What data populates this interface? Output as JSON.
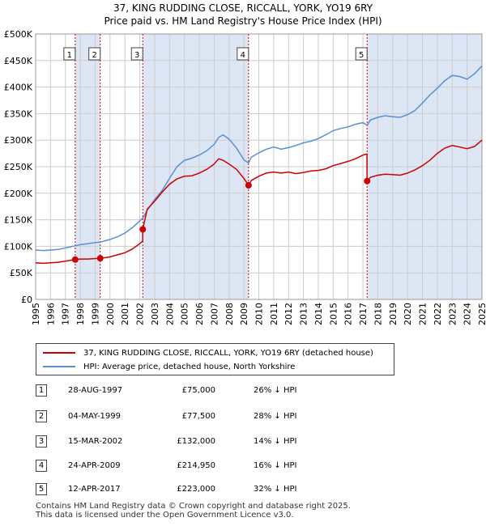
{
  "title_line1": "37, KING RUDDING CLOSE, RICCALL, YORK, YO19 6RY",
  "title_line2": "Price paid vs. HM Land Registry's House Price Index (HPI)",
  "legend": {
    "red": "37, KING RUDDING CLOSE, RICCALL, YORK, YO19 6RY (detached house)",
    "blue": "HPI: Average price, detached house, North Yorkshire"
  },
  "transactions": [
    {
      "num": "1",
      "date": "28-AUG-1997",
      "price": "£75,000",
      "hpi": "26% ↓ HPI"
    },
    {
      "num": "2",
      "date": "04-MAY-1999",
      "price": "£77,500",
      "hpi": "28% ↓ HPI"
    },
    {
      "num": "3",
      "date": "15-MAR-2002",
      "price": "£132,000",
      "hpi": "14% ↓ HPI"
    },
    {
      "num": "4",
      "date": "24-APR-2009",
      "price": "£214,950",
      "hpi": "16% ↓ HPI"
    },
    {
      "num": "5",
      "date": "12-APR-2017",
      "price": "£223,000",
      "hpi": "32% ↓ HPI"
    }
  ],
  "footer_line1": "Contains HM Land Registry data © Crown copyright and database right 2025.",
  "footer_line2": "This data is licensed under the Open Government Licence v3.0.",
  "colors": {
    "red": "#cc0000",
    "blue": "#5b8fd1",
    "shade": "#dde6f5"
  },
  "chart_data": {
    "type": "line",
    "title": "37, KING RUDDING CLOSE, RICCALL, YORK, YO19 6RY",
    "subtitle": "Price paid vs. HM Land Registry's House Price Index (HPI)",
    "xlim": [
      1995,
      2025
    ],
    "ylim": [
      0,
      500000
    ],
    "x_ticks": [
      "1995",
      "1996",
      "1997",
      "1998",
      "1999",
      "2000",
      "2001",
      "2002",
      "2003",
      "2004",
      "2005",
      "2006",
      "2007",
      "2008",
      "2009",
      "2010",
      "2011",
      "2012",
      "2013",
      "2014",
      "2015",
      "2016",
      "2017",
      "2018",
      "2019",
      "2020",
      "2021",
      "2022",
      "2023",
      "2024",
      "2025"
    ],
    "y_ticks": [
      {
        "v": 0,
        "label": "£0"
      },
      {
        "v": 50000,
        "label": "£50K"
      },
      {
        "v": 100000,
        "label": "£100K"
      },
      {
        "v": 150000,
        "label": "£150K"
      },
      {
        "v": 200000,
        "label": "£200K"
      },
      {
        "v": 250000,
        "label": "£250K"
      },
      {
        "v": 300000,
        "label": "£300K"
      },
      {
        "v": 350000,
        "label": "£350K"
      },
      {
        "v": 400000,
        "label": "£400K"
      },
      {
        "v": 450000,
        "label": "£450K"
      },
      {
        "v": 500000,
        "label": "£500K"
      }
    ],
    "grid": true,
    "legend_position": "below chart",
    "sales": [
      {
        "label": "1",
        "x": 1997.66,
        "y": 75000
      },
      {
        "label": "2",
        "x": 1999.34,
        "y": 77500
      },
      {
        "label": "3",
        "x": 2002.2,
        "y": 132000
      },
      {
        "label": "4",
        "x": 2009.31,
        "y": 214950
      },
      {
        "label": "5",
        "x": 2017.28,
        "y": 223000
      }
    ],
    "series": [
      {
        "name": "HPI: Average price, detached house, North Yorkshire",
        "x": [
          1995,
          1995.5,
          1996,
          1996.5,
          1997,
          1997.66,
          1998,
          1998.5,
          1999,
          1999.34,
          2000,
          2000.5,
          2001,
          2001.5,
          2002,
          2002.2,
          2002.5,
          2003,
          2003.5,
          2004,
          2004.5,
          2005,
          2005.5,
          2006,
          2006.5,
          2007,
          2007.3,
          2007.6,
          2008,
          2008.5,
          2009,
          2009.31,
          2009.5,
          2010,
          2010.5,
          2011,
          2011.5,
          2012,
          2012.5,
          2013,
          2013.5,
          2014,
          2014.5,
          2015,
          2015.5,
          2016,
          2016.5,
          2017,
          2017.28,
          2017.5,
          2018,
          2018.5,
          2019,
          2019.5,
          2020,
          2020.5,
          2021,
          2021.5,
          2022,
          2022.5,
          2023,
          2023.5,
          2024,
          2024.5,
          2025
        ],
        "y": [
          93000,
          92000,
          93000,
          94000,
          97000,
          101000,
          103000,
          105000,
          107000,
          108000,
          113000,
          118000,
          125000,
          135000,
          148000,
          153000,
          168000,
          188000,
          205000,
          228000,
          250000,
          262000,
          266000,
          272000,
          280000,
          292000,
          305000,
          310000,
          302000,
          285000,
          263000,
          257000,
          268000,
          276000,
          283000,
          287000,
          283000,
          286000,
          290000,
          295000,
          298000,
          303000,
          310000,
          318000,
          322000,
          325000,
          330000,
          333000,
          328000,
          338000,
          343000,
          346000,
          344000,
          343000,
          348000,
          356000,
          370000,
          385000,
          398000,
          412000,
          422000,
          420000,
          415000,
          425000,
          440000
        ]
      },
      {
        "name": "37, KING RUDDING CLOSE, RICCALL, YORK, YO19 6RY (detached house)",
        "x": [
          1995,
          1995.5,
          1996,
          1996.5,
          1997,
          1997.66,
          1998,
          1998.5,
          1999,
          1999.34,
          2000,
          2000.5,
          2001,
          2001.5,
          2002,
          2002.19,
          2002.2,
          2002.5,
          2003,
          2003.5,
          2004,
          2004.5,
          2005,
          2005.5,
          2006,
          2006.5,
          2007,
          2007.3,
          2007.6,
          2008,
          2008.5,
          2009,
          2009.31,
          2009.5,
          2010,
          2010.5,
          2011,
          2011.5,
          2012,
          2012.5,
          2013,
          2013.5,
          2014,
          2014.5,
          2015,
          2015.5,
          2016,
          2016.5,
          2017,
          2017.27,
          2017.28,
          2017.5,
          2018,
          2018.5,
          2019,
          2019.5,
          2020,
          2020.5,
          2021,
          2021.5,
          2022,
          2022.5,
          2023,
          2023.5,
          2024,
          2024.5,
          2025
        ],
        "y": [
          69000,
          68000,
          69000,
          70000,
          72000,
          75000,
          76000,
          76000,
          77000,
          77500,
          80000,
          84000,
          88000,
          95000,
          105000,
          110000,
          132000,
          170000,
          185000,
          202000,
          217000,
          227000,
          232000,
          233000,
          238000,
          245000,
          255000,
          265000,
          262000,
          255000,
          245000,
          228000,
          214950,
          224000,
          232000,
          238000,
          240000,
          238000,
          240000,
          237000,
          239000,
          242000,
          243000,
          246000,
          252000,
          256000,
          260000,
          265000,
          272000,
          274000,
          223000,
          230000,
          234000,
          236000,
          235000,
          234000,
          238000,
          244000,
          252000,
          262000,
          275000,
          285000,
          290000,
          287000,
          284000,
          288000,
          300000
        ]
      }
    ]
  }
}
